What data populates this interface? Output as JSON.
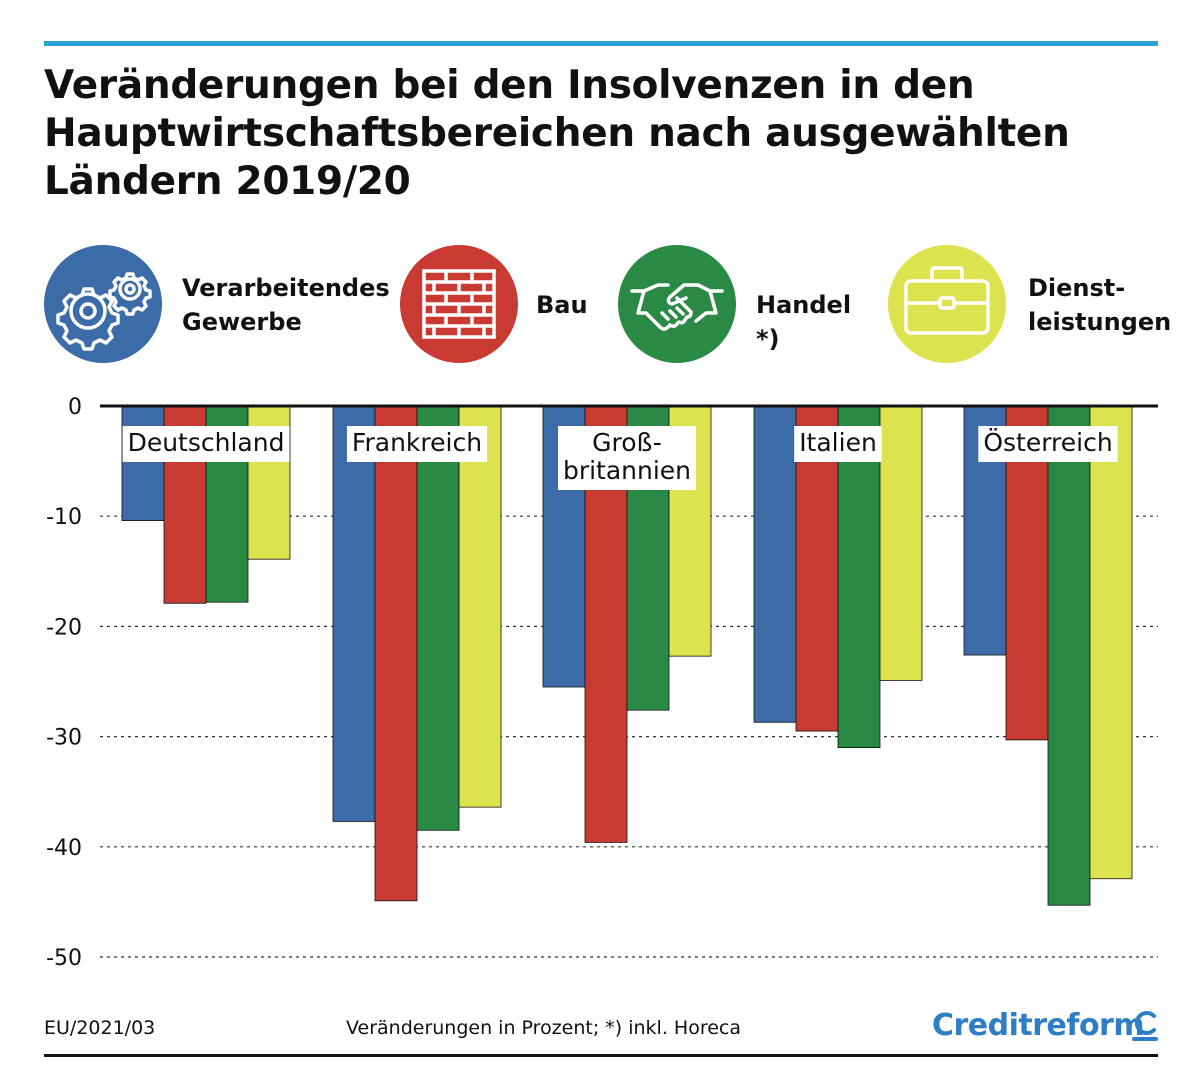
{
  "header": {
    "title": "Veränderungen bei den Insolvenzen in den\nHauptwirtschaftsbereichen nach ausgewählten\nLändern 2019/20"
  },
  "legend": [
    {
      "label": "Verarbeitendes\nGewerbe",
      "icon": "gears-icon",
      "color": "#3b6ca8"
    },
    {
      "label": "Bau",
      "icon": "brick-wall-icon",
      "color": "#c93a32"
    },
    {
      "label": "Handel *)",
      "icon": "handshake-icon",
      "color": "#2a8a45"
    },
    {
      "label": "Dienst-\nleistungen",
      "icon": "briefcase-icon",
      "color": "#dde24f"
    }
  ],
  "chart_data": {
    "type": "bar",
    "categories": [
      "Deutschland",
      "Frankreich",
      "Groß-\nbritannien",
      "Italien",
      "Österreich"
    ],
    "series": [
      {
        "name": "Verarbeitendes Gewerbe",
        "color": "#3b6ca8",
        "values": [
          -10.4,
          -37.7,
          -25.5,
          -28.7,
          -22.6
        ]
      },
      {
        "name": "Bau",
        "color": "#c93a32",
        "values": [
          -17.9,
          -44.9,
          -39.6,
          -29.5,
          -30.3
        ]
      },
      {
        "name": "Handel *)",
        "color": "#2a8a45",
        "values": [
          -17.8,
          -38.5,
          -27.6,
          -31.0,
          -45.3
        ]
      },
      {
        "name": "Dienstleistungen",
        "color": "#dde24f",
        "values": [
          -13.9,
          -36.4,
          -22.7,
          -24.9,
          -42.9
        ]
      }
    ],
    "yticks": [
      "0",
      "-10",
      "-20",
      "-30",
      "-40",
      "-50"
    ],
    "ylim": [
      -50,
      0
    ],
    "grid": "dashed"
  },
  "footer": {
    "code": "EU/2021/03",
    "note": "Veränderungen in Prozent; *) inkl. Horeca",
    "brand": "Creditreform",
    "brand_color": "#2d7ec6"
  }
}
